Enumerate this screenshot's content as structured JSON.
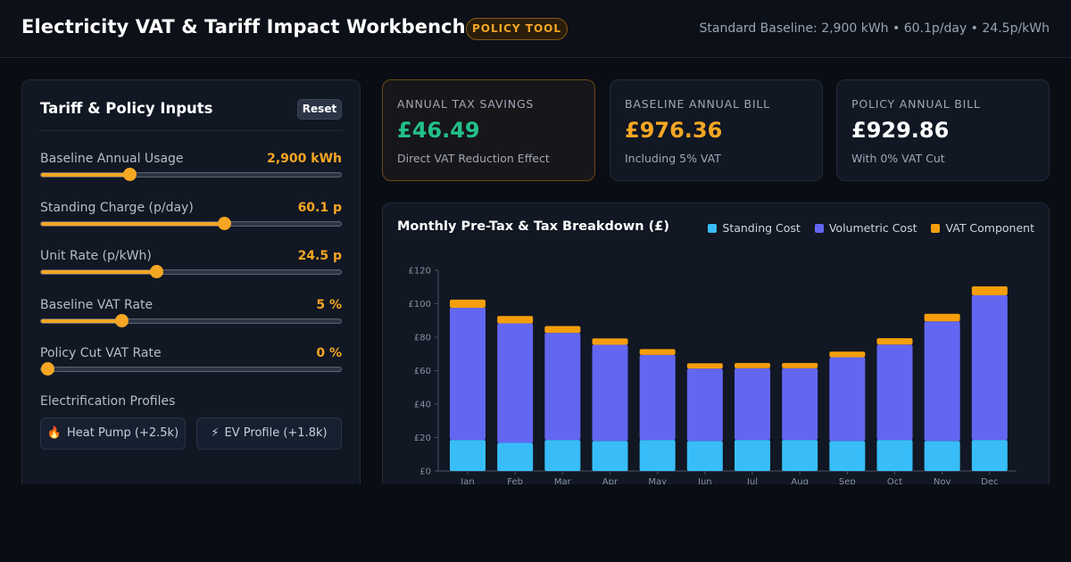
{
  "header": {
    "title": "Electricity VAT & Tariff Impact Workbench",
    "badge": "POLICY TOOL",
    "baseline_info": "Standard Baseline: 2,900 kWh • 60.1p/day • 24.5p/kWh"
  },
  "inputs": {
    "title": "Tariff & Policy Inputs",
    "reset_label": "Reset",
    "controls": [
      {
        "label": "Baseline Annual Usage",
        "value": "2,900 kWh",
        "fraction": 0.28
      },
      {
        "label": "Standing Charge (p/day)",
        "value": "60.1 p",
        "fraction": 0.6
      },
      {
        "label": "Unit Rate (p/kWh)",
        "value": "24.5 p",
        "fraction": 0.37
      },
      {
        "label": "Baseline VAT Rate",
        "value": "5 %",
        "fraction": 0.25
      },
      {
        "label": "Policy Cut VAT Rate",
        "value": "0 %",
        "fraction": 0.0
      }
    ],
    "profiles_label": "Electrification Profiles",
    "profiles": [
      {
        "icon": "🔥",
        "label": "Heat Pump (+2.5k)"
      },
      {
        "icon": "⚡",
        "label": "EV Profile (+1.8k)"
      }
    ]
  },
  "cards": {
    "savings": {
      "label": "ANNUAL TAX SAVINGS",
      "value": "£46.49",
      "sub": "Direct VAT Reduction Effect"
    },
    "baseline": {
      "label": "BASELINE ANNUAL BILL",
      "value": "£976.36",
      "sub": "Including 5% VAT"
    },
    "policy": {
      "label": "POLICY ANNUAL BILL",
      "value": "£929.86",
      "sub": "With 0% VAT Cut"
    }
  },
  "colors": {
    "standing": "#38bdf8",
    "volumetric": "#6366f1",
    "vat": "#f59e0b",
    "accent": "#f5a623",
    "savings": "#22c08a"
  },
  "chart_data": {
    "type": "bar",
    "title": "Monthly Pre-Tax & Tax Breakdown (£)",
    "categories": [
      "Jan",
      "Feb",
      "Mar",
      "Apr",
      "May",
      "Jun",
      "Jul",
      "Aug",
      "Sep",
      "Oct",
      "Nov",
      "Dec"
    ],
    "series": [
      {
        "name": "Standing Cost",
        "values": [
          18.6,
          16.8,
          18.6,
          18.0,
          18.6,
          18.0,
          18.6,
          18.6,
          18.0,
          18.6,
          18.0,
          18.6
        ]
      },
      {
        "name": "Volumetric Cost",
        "values": [
          79.0,
          71.5,
          64.0,
          57.5,
          50.8,
          43.3,
          42.9,
          42.9,
          50.0,
          57.0,
          71.5,
          86.5
        ]
      },
      {
        "name": "VAT Component",
        "values": [
          4.9,
          4.4,
          4.1,
          3.8,
          3.5,
          3.1,
          3.1,
          3.1,
          3.4,
          3.8,
          4.5,
          5.3
        ]
      }
    ],
    "ylim": [
      0,
      120
    ],
    "yticks": [
      "£0",
      "£20",
      "£40",
      "£60",
      "£80",
      "£100",
      "£120"
    ],
    "stacked": true,
    "grid": false,
    "legend": "top-right"
  }
}
